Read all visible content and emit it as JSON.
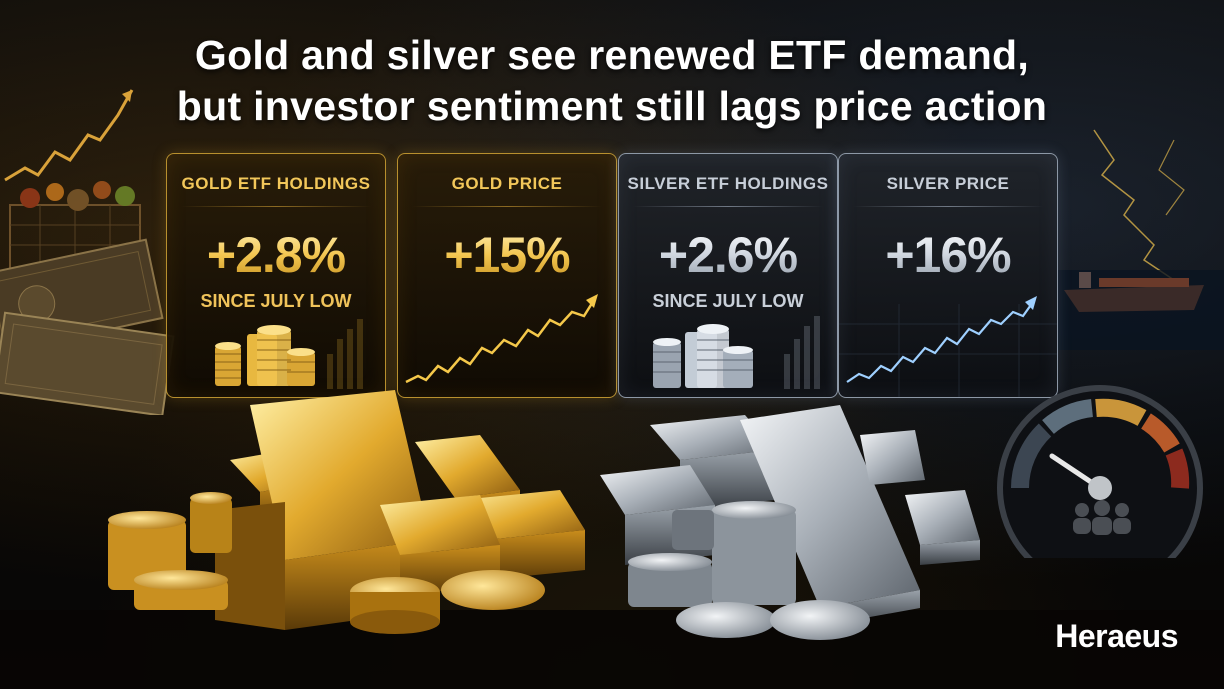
{
  "headline": {
    "line1": "Gold and silver see renewed ETF demand,",
    "line2": "but investor sentiment still lags price action"
  },
  "cards": [
    {
      "title": "GOLD ETF HOLDINGS",
      "value": "+2.8%",
      "subtitle": "SINCE JULY LOW",
      "theme": "gold",
      "art": "coin-stacks"
    },
    {
      "title": "GOLD PRICE",
      "value": "+15%",
      "subtitle": "",
      "theme": "gold",
      "art": "trend-line"
    },
    {
      "title": "SILVER ETF HOLDINGS",
      "value": "+2.6%",
      "subtitle": "SINCE JULY LOW",
      "theme": "silver",
      "art": "coin-stacks"
    },
    {
      "title": "SILVER PRICE",
      "value": "+16%",
      "subtitle": "",
      "theme": "silver",
      "art": "trend-line"
    }
  ],
  "brand": {
    "logo_text": "Heraeus"
  },
  "colors": {
    "gold": "#f2c75a",
    "silver": "#c7ced8",
    "silver_trend": "#9fd0ff",
    "background": "#050505"
  },
  "icons": [
    "shopping-cart-icon",
    "banknotes-icon",
    "cargo-ship-icon",
    "sentiment-gauge-icon",
    "people-icon"
  ]
}
